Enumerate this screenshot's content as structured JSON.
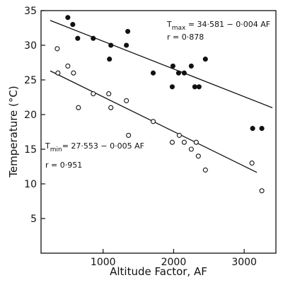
{
  "chart_data": {
    "type": "scatter",
    "xlabel": "Altitude Factor, AF",
    "ylabel": "Temperature (°C)",
    "xlim": [
      120,
      3450
    ],
    "ylim": [
      0,
      35
    ],
    "x_ticks": [
      1000,
      2000,
      3000
    ],
    "y_ticks": [
      5,
      10,
      15,
      20,
      25,
      30,
      35
    ],
    "grid": false,
    "series": [
      {
        "name": "Tmax",
        "marker": "filled",
        "color": "#111111",
        "points": [
          [
            500,
            34
          ],
          [
            570,
            33
          ],
          [
            640,
            31
          ],
          [
            860,
            31
          ],
          [
            1090,
            28
          ],
          [
            1110,
            30
          ],
          [
            1330,
            30
          ],
          [
            1350,
            32
          ],
          [
            1710,
            26
          ],
          [
            1980,
            24
          ],
          [
            1990,
            27
          ],
          [
            2070,
            26
          ],
          [
            2150,
            26
          ],
          [
            2250,
            27
          ],
          [
            2300,
            24
          ],
          [
            2360,
            24
          ],
          [
            2450,
            28
          ],
          [
            3120,
            18
          ],
          [
            3250,
            18
          ]
        ],
        "fit": {
          "equation_lead": "T",
          "equation_sub": "max",
          "equation_rest": " = 34·581 − 0·004 AF",
          "r_text": "r = 0·878",
          "intercept": 34.581,
          "slope": -0.004,
          "x_range": [
            250,
            3400
          ]
        }
      },
      {
        "name": "Tmin",
        "marker": "open",
        "color": "#111111",
        "points": [
          [
            350,
            29.5
          ],
          [
            360,
            26
          ],
          [
            500,
            27
          ],
          [
            580,
            26
          ],
          [
            650,
            21
          ],
          [
            860,
            23
          ],
          [
            1080,
            23
          ],
          [
            1110,
            21
          ],
          [
            1330,
            22
          ],
          [
            1360,
            17
          ],
          [
            1710,
            19
          ],
          [
            1980,
            16
          ],
          [
            2080,
            17
          ],
          [
            2150,
            16
          ],
          [
            2250,
            15
          ],
          [
            2320,
            16
          ],
          [
            2350,
            14
          ],
          [
            2450,
            12
          ],
          [
            3110,
            13
          ],
          [
            3250,
            9
          ]
        ],
        "fit": {
          "equation_lead": "T",
          "equation_sub": "min",
          "equation_rest": "= 27·553 − 0·005 AF",
          "r_text": "r = 0·951",
          "intercept": 27.553,
          "slope": -0.005,
          "x_range": [
            250,
            3180
          ]
        }
      }
    ]
  }
}
